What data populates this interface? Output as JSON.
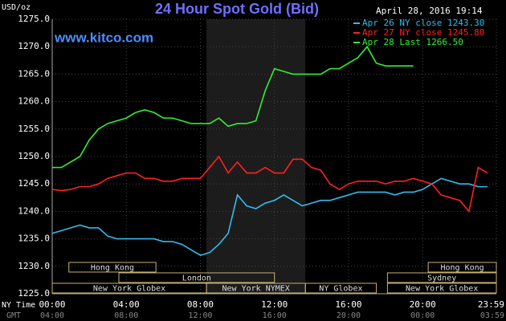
{
  "chart_data": {
    "type": "line",
    "title": "24 Hour Spot Gold (Bid)",
    "timestamp": "April 28, 2016 19:14",
    "website": "www.kitco.com",
    "y_unit": "USD/oz",
    "x_axis_label": "NY Time",
    "x2_axis_label": "GMT",
    "xlim": [
      0,
      23.98
    ],
    "xticks": [
      {
        "value": 0,
        "label": "00:00",
        "gmt": "04:00"
      },
      {
        "value": 4,
        "label": "04:00",
        "gmt": "08:00"
      },
      {
        "value": 8,
        "label": "08:00",
        "gmt": "12:00"
      },
      {
        "value": 12,
        "label": "12:00",
        "gmt": "16:00"
      },
      {
        "value": 16,
        "label": "16:00",
        "gmt": "20:00"
      },
      {
        "value": 20,
        "label": "20:00",
        "gmt": "00:00"
      },
      {
        "value": 23.98,
        "label": "23:59",
        "gmt": "03:59"
      }
    ],
    "ylim": [
      1225,
      1275
    ],
    "yticks": [
      {
        "value": 1225,
        "label": "1225.0"
      },
      {
        "value": 1230,
        "label": "1230.0"
      },
      {
        "value": 1235,
        "label": "1235.0"
      },
      {
        "value": 1240,
        "label": "1240.0"
      },
      {
        "value": 1245,
        "label": "1245.0"
      },
      {
        "value": 1250,
        "label": "1250.0"
      },
      {
        "value": 1255,
        "label": "1255.0"
      },
      {
        "value": 1260,
        "label": "1260.0"
      },
      {
        "value": 1265,
        "label": "1265.0"
      },
      {
        "value": 1270,
        "label": "1270.0"
      },
      {
        "value": 1275,
        "label": "1275.0"
      }
    ],
    "grid": true,
    "highlight_range": [
      8.33,
      13.67
    ],
    "x": [
      0,
      0.5,
      1,
      1.5,
      2,
      2.5,
      3,
      3.5,
      4,
      4.5,
      5,
      5.5,
      6,
      6.5,
      7,
      7.5,
      8,
      8.5,
      9,
      9.5,
      10,
      10.5,
      11,
      11.5,
      12,
      12.5,
      13,
      13.5,
      14,
      14.5,
      15,
      15.5,
      16,
      16.5,
      17,
      17.5,
      18,
      18.5,
      19,
      19.5,
      20,
      20.5,
      21,
      21.5,
      22,
      22.5,
      23,
      23.5
    ],
    "series": [
      {
        "name": "Apr 26 NY close 1243.30",
        "color": "#33bbee",
        "values": [
          1236,
          1236.5,
          1237,
          1237.5,
          1237,
          1237,
          1235.5,
          1235,
          1235,
          1235,
          1235,
          1235,
          1234.5,
          1234.5,
          1234,
          1233,
          1232,
          1232.5,
          1234,
          1236,
          1243,
          1241,
          1240.5,
          1241.5,
          1242,
          1243,
          1242,
          1241,
          1241.5,
          1242,
          1242,
          1242.5,
          1243,
          1243.5,
          1243.5,
          1243.5,
          1243.5,
          1243,
          1243.5,
          1243.5,
          1244,
          1245,
          1246,
          1245.5,
          1245,
          1245,
          1244.5,
          1244.5
        ]
      },
      {
        "name": "Apr 27 NY close 1245.80",
        "color": "#ff2020",
        "values": [
          1244,
          1243.8,
          1244,
          1244.5,
          1244.5,
          1245,
          1246,
          1246.5,
          1247,
          1247,
          1246,
          1246,
          1245.5,
          1245.5,
          1246,
          1246,
          1246,
          1248,
          1250,
          1247,
          1249,
          1247,
          1247,
          1248,
          1247,
          1247,
          1249.5,
          1249.5,
          1248,
          1247.5,
          1245,
          1244,
          1245,
          1245.5,
          1245.5,
          1245.5,
          1245,
          1245.5,
          1245.5,
          1246,
          1245.5,
          1245,
          1243,
          1242.5,
          1242,
          1240,
          1248,
          1247
        ]
      },
      {
        "name": "Apr 28 Last 1266.50",
        "color": "#33ee33",
        "values": [
          1248,
          1248,
          1249,
          1250,
          1253,
          1255,
          1256,
          1256.5,
          1257,
          1258,
          1258.5,
          1258,
          1257,
          1257,
          1256.5,
          1256,
          1256,
          1256,
          1257,
          1255.5,
          1256,
          1256,
          1256.5,
          1262,
          1266,
          1265.5,
          1265,
          1265,
          1265,
          1265,
          1266,
          1266,
          1267,
          1268,
          1270,
          1267,
          1266.5,
          1266.5,
          1266.5,
          1266.5,
          null,
          null,
          null,
          null,
          null,
          null,
          null,
          null
        ]
      }
    ],
    "sessions": [
      {
        "label": "Hong Kong",
        "row": 0,
        "start": 0.9,
        "end": 5.6
      },
      {
        "label": "Hong Kong",
        "row": 0,
        "start": 20.3,
        "end": 23.98
      },
      {
        "label": "London",
        "row": 1,
        "start": 3.6,
        "end": 12
      },
      {
        "label": "Sydney",
        "row": 1,
        "start": 18.1,
        "end": 23.98
      },
      {
        "label": "New York Globex",
        "row": 2,
        "start": 0,
        "end": 8.33
      },
      {
        "label": "New York NYMEX",
        "row": 2,
        "start": 8.33,
        "end": 13.67
      },
      {
        "label": "NY Globex",
        "row": 2,
        "start": 13.67,
        "end": 17.5
      },
      {
        "label": "New York Globex",
        "row": 2,
        "start": 18.1,
        "end": 23.98
      }
    ]
  }
}
